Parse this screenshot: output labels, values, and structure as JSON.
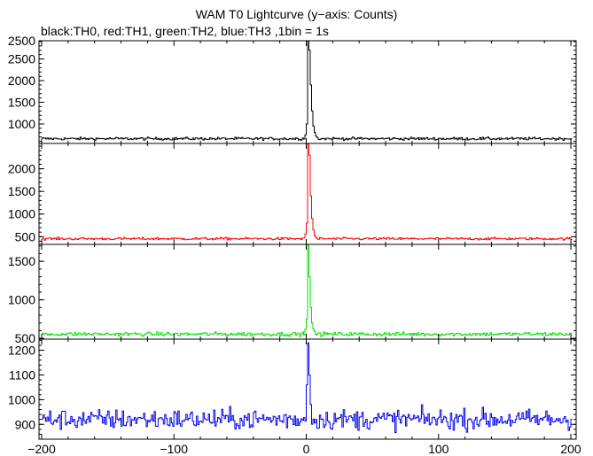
{
  "title": "WAM T0 Lightcurve (y−axis: Counts)",
  "subtitle": "black:TH0, red:TH1, green:TH2, blue:TH3 ,1bin = 1s",
  "chart_data": {
    "type": "line",
    "x_range": [
      -202,
      204
    ],
    "x_ticks": [
      -200,
      -100,
      0,
      100,
      200
    ],
    "x_tick_labels": [
      "−200",
      "−100",
      "0",
      "100",
      "200"
    ],
    "grid": false,
    "panels": [
      {
        "channel": "TH0",
        "color": "#000000",
        "ylim": [
          550,
          2920
        ],
        "yticks": [
          1000,
          1500,
          2000,
          2500
        ],
        "ytick_labels": [
          "1000",
          "1500",
          "2000",
          "2500"
        ],
        "y_top_label": "2500",
        "baseline": 660,
        "noise": 35,
        "peak": [
          {
            "x": -1,
            "y": 750
          },
          {
            "x": 0,
            "y": 1000
          },
          {
            "x": 1,
            "y": 2920
          },
          {
            "x": 2,
            "y": 2700
          },
          {
            "x": 3,
            "y": 1900
          },
          {
            "x": 4,
            "y": 1300
          },
          {
            "x": 5,
            "y": 950
          },
          {
            "x": 6,
            "y": 800
          },
          {
            "x": 7,
            "y": 720
          },
          {
            "x": 8,
            "y": 690
          }
        ]
      },
      {
        "channel": "TH1",
        "color": "#ff0000",
        "ylim": [
          330,
          2560
        ],
        "yticks": [
          500,
          1000,
          1500,
          2000
        ],
        "ytick_labels": [
          "500",
          "1000",
          "1500",
          "2000"
        ],
        "baseline": 455,
        "noise": 30,
        "peak": [
          {
            "x": -1,
            "y": 560
          },
          {
            "x": 0,
            "y": 800
          },
          {
            "x": 1,
            "y": 2550
          },
          {
            "x": 2,
            "y": 2300
          },
          {
            "x": 3,
            "y": 1400
          },
          {
            "x": 4,
            "y": 900
          },
          {
            "x": 5,
            "y": 650
          },
          {
            "x": 6,
            "y": 520
          },
          {
            "x": 7,
            "y": 480
          }
        ]
      },
      {
        "channel": "TH2",
        "color": "#00e000",
        "ylim": [
          490,
          1720
        ],
        "yticks": [
          500,
          1000,
          1500
        ],
        "ytick_labels": [
          "500",
          "1000",
          "1500"
        ],
        "baseline": 555,
        "noise": 28,
        "peak": [
          {
            "x": -1,
            "y": 620
          },
          {
            "x": 0,
            "y": 750
          },
          {
            "x": 1,
            "y": 1720
          },
          {
            "x": 2,
            "y": 1300
          },
          {
            "x": 3,
            "y": 900
          },
          {
            "x": 4,
            "y": 700
          },
          {
            "x": 5,
            "y": 620
          },
          {
            "x": 6,
            "y": 590
          }
        ]
      },
      {
        "channel": "TH3",
        "color": "#0000ee",
        "ylim": [
          840,
          1245
        ],
        "yticks": [
          900,
          1000,
          1100,
          1200
        ],
        "ytick_labels": [
          "900",
          "1000",
          "1100",
          "1200"
        ],
        "baseline": 920,
        "noise": 45,
        "peak": [
          {
            "x": 0,
            "y": 1060
          },
          {
            "x": 1,
            "y": 1230
          },
          {
            "x": 2,
            "y": 1100
          },
          {
            "x": 3,
            "y": 980
          }
        ]
      }
    ]
  }
}
